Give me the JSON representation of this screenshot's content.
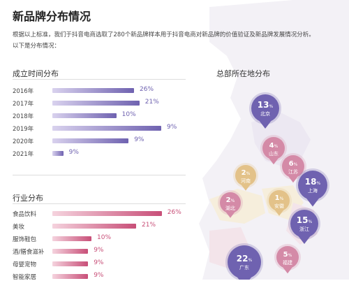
{
  "page": {
    "title": "新品牌分布情况",
    "intro_line1": "根据以上标准，我们于抖音电商选取了280个新品牌样本用于抖音电商对新品牌的价值验证及新品牌发展情况分析。",
    "intro_line2": "以下是分布情况："
  },
  "colors": {
    "purple": "#6f62b0",
    "pink": "#c84f78",
    "pin_purple_light": "#a99ad6",
    "pin_pink": "#d48aa7",
    "pin_beige": "#e3c289"
  },
  "chart_data": [
    {
      "type": "bar",
      "title": "成立时间分布",
      "categories": [
        "2016年",
        "2017年",
        "2018年",
        "2019年",
        "2020年",
        "2021年"
      ],
      "values": [
        26,
        21,
        10,
        9,
        9,
        9
      ],
      "value_labels": [
        "26%",
        "21%",
        "10%",
        "9%",
        "9%",
        "9%"
      ],
      "unit": "%",
      "orientation": "horizontal",
      "note": "bar lengths as drawn in original (2019 appears longest)",
      "bar_levels": [
        0.6,
        0.64,
        0.47,
        0.8,
        0.56,
        0.08
      ]
    },
    {
      "type": "bar",
      "title": "行业分布",
      "categories": [
        "食品饮料",
        "美妆",
        "服饰鞋包",
        "酒/膳食滋补",
        "母婴宠物",
        "智能家居"
      ],
      "values": [
        26,
        21,
        10,
        9,
        9,
        9
      ],
      "value_labels": [
        "26%",
        "21%",
        "10%",
        "9%",
        "9%",
        "9%"
      ],
      "unit": "%",
      "orientation": "horizontal",
      "bar_levels": [
        0.98,
        0.75,
        0.35,
        0.32,
        0.32,
        0.32
      ]
    }
  ],
  "map": {
    "title": "总部所在地分布",
    "pins": [
      {
        "id": "beijing",
        "name": "北京",
        "value": "13",
        "unit": "%",
        "style": "purple"
      },
      {
        "id": "shandong",
        "name": "山东",
        "value": "4",
        "unit": "%",
        "style": "pink"
      },
      {
        "id": "jiangsu",
        "name": "江苏",
        "value": "6",
        "unit": "%",
        "style": "pink"
      },
      {
        "id": "henan",
        "name": "河南",
        "value": "2",
        "unit": "%",
        "style": "beige"
      },
      {
        "id": "shanghai",
        "name": "上海",
        "value": "18",
        "unit": "%",
        "style": "purple"
      },
      {
        "id": "hubei",
        "name": "湖北",
        "value": "2",
        "unit": "%",
        "style": "pink"
      },
      {
        "id": "anhui",
        "name": "安徽",
        "value": "1",
        "unit": "%",
        "style": "beige"
      },
      {
        "id": "zhejiang",
        "name": "浙江",
        "value": "15",
        "unit": "%",
        "style": "purple"
      },
      {
        "id": "fujian",
        "name": "福建",
        "value": "5",
        "unit": "%",
        "style": "pink"
      },
      {
        "id": "guangdong",
        "name": "广东",
        "value": "22",
        "unit": "%",
        "style": "purple"
      }
    ]
  }
}
